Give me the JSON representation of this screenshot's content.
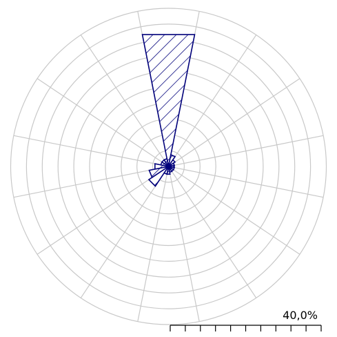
{
  "chart_data": {
    "type": "wind-rose",
    "directions": 16,
    "grid": true,
    "rings": 10,
    "values": [
      34,
      3,
      2,
      1.5,
      1.5,
      1.5,
      1.5,
      1.5,
      2,
      2,
      6,
      5,
      3.5,
      2,
      2,
      2
    ],
    "rmax": 40,
    "scale_label": "40,0%",
    "colors": {
      "petal": "#00007a",
      "grid": "#c8c8c8",
      "scale": "#000000"
    }
  }
}
